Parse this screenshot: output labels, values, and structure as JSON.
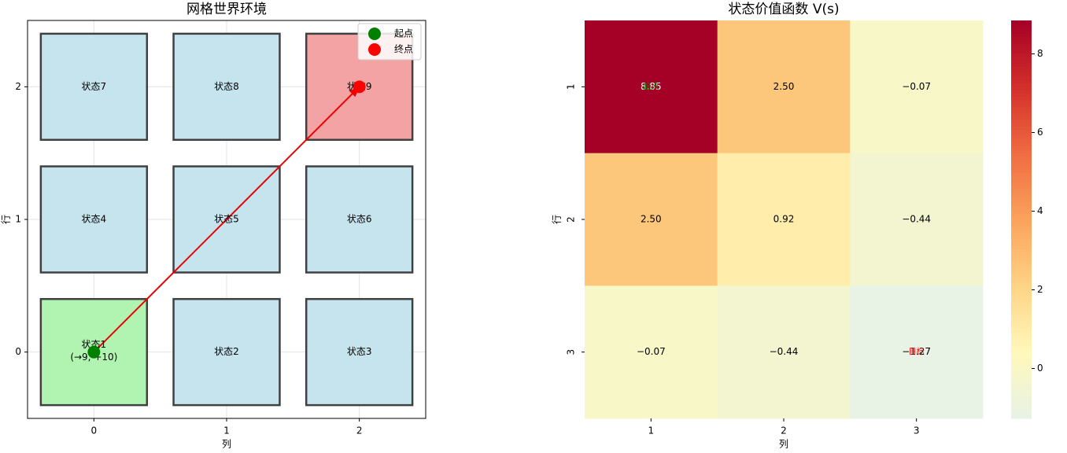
{
  "chart_data": [
    {
      "type": "grid",
      "title": "网格世界环境",
      "xlabel": "列",
      "ylabel": "行",
      "xlim": [
        -0.5,
        2.5
      ],
      "ylim": [
        -0.5,
        2.5
      ],
      "xticks": [
        0,
        1,
        2
      ],
      "yticks": [
        0,
        1,
        2
      ],
      "grid": true,
      "cells": [
        {
          "x": 0,
          "y": 0,
          "label": "状态1",
          "note": "(→9, +10)",
          "color": "#b1f4b1"
        },
        {
          "x": 1,
          "y": 0,
          "label": "状态2",
          "color": "#c6e4ee"
        },
        {
          "x": 2,
          "y": 0,
          "label": "状态3",
          "color": "#c6e4ee"
        },
        {
          "x": 0,
          "y": 1,
          "label": "状态4",
          "color": "#c6e4ee"
        },
        {
          "x": 1,
          "y": 1,
          "label": "状态5",
          "color": "#c6e4ee"
        },
        {
          "x": 2,
          "y": 1,
          "label": "状态6",
          "color": "#c6e4ee"
        },
        {
          "x": 0,
          "y": 2,
          "label": "状态7",
          "color": "#c6e4ee"
        },
        {
          "x": 1,
          "y": 2,
          "label": "状态8",
          "color": "#c6e4ee"
        },
        {
          "x": 2,
          "y": 2,
          "label": "状态9",
          "color": "#f3a3a3"
        }
      ],
      "path": {
        "x": [
          0,
          2
        ],
        "y": [
          0,
          2
        ],
        "color": "#ee0000"
      },
      "series": [
        {
          "name": "起点",
          "color": "green",
          "x": [
            0
          ],
          "y": [
            0
          ]
        },
        {
          "name": "终点",
          "color": "red",
          "x": [
            2
          ],
          "y": [
            2
          ]
        }
      ],
      "legend": "upper right"
    },
    {
      "type": "heatmap",
      "title": "状态价值函数 V(s)",
      "xlabel": "列",
      "ylabel": "行",
      "categories": [
        "1",
        "2",
        "3"
      ],
      "rows": [
        "1",
        "2",
        "3"
      ],
      "values": [
        [
          8.85,
          2.5,
          -0.07
        ],
        [
          2.5,
          0.92,
          -0.44
        ],
        [
          -0.07,
          -0.44,
          -1.27
        ]
      ],
      "value_labels": [
        [
          "8.85",
          "2.50",
          "−0.07"
        ],
        [
          "2.50",
          "0.92",
          "−0.44"
        ],
        [
          "−0.07",
          "−0.44",
          "−1.27"
        ]
      ],
      "annotations": [
        {
          "row": "1",
          "col": "1",
          "text": "起点",
          "color": "green"
        },
        {
          "row": "3",
          "col": "3",
          "text": "目标",
          "color": "red"
        }
      ],
      "clim": [
        -1.27,
        8.85
      ],
      "cticks": [
        0,
        2,
        4,
        6,
        8
      ],
      "colormap": [
        "#e8f3e6",
        "#fff8bb",
        "#fed385",
        "#fba25c",
        "#f06b41",
        "#d32f2a",
        "#a50026"
      ]
    }
  ]
}
